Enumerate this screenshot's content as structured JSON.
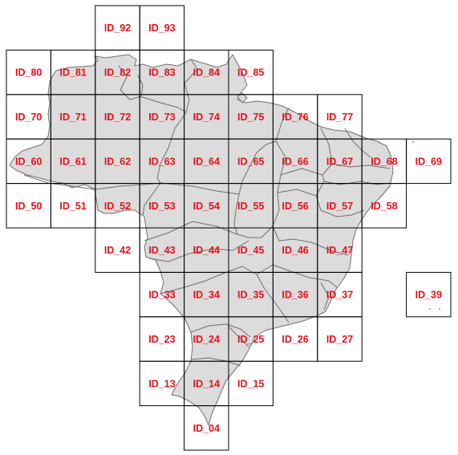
{
  "map": {
    "tiles": [
      {
        "id": "ID_92",
        "row": 0,
        "col": 2
      },
      {
        "id": "ID_93",
        "row": 0,
        "col": 3
      },
      {
        "id": "ID_80",
        "row": 1,
        "col": 0
      },
      {
        "id": "ID_81",
        "row": 1,
        "col": 1
      },
      {
        "id": "ID_82",
        "row": 1,
        "col": 2
      },
      {
        "id": "ID_83",
        "row": 1,
        "col": 3
      },
      {
        "id": "ID_84",
        "row": 1,
        "col": 4
      },
      {
        "id": "ID_85",
        "row": 1,
        "col": 5
      },
      {
        "id": "ID_70",
        "row": 2,
        "col": 0
      },
      {
        "id": "ID_71",
        "row": 2,
        "col": 1
      },
      {
        "id": "ID_72",
        "row": 2,
        "col": 2
      },
      {
        "id": "ID_73",
        "row": 2,
        "col": 3
      },
      {
        "id": "ID_74",
        "row": 2,
        "col": 4
      },
      {
        "id": "ID_75",
        "row": 2,
        "col": 5
      },
      {
        "id": "ID_76",
        "row": 2,
        "col": 6
      },
      {
        "id": "ID_77",
        "row": 2,
        "col": 7
      },
      {
        "id": "ID_60",
        "row": 3,
        "col": 0
      },
      {
        "id": "ID_61",
        "row": 3,
        "col": 1
      },
      {
        "id": "ID_62",
        "row": 3,
        "col": 2
      },
      {
        "id": "ID_63",
        "row": 3,
        "col": 3
      },
      {
        "id": "ID_64",
        "row": 3,
        "col": 4
      },
      {
        "id": "ID_65",
        "row": 3,
        "col": 5
      },
      {
        "id": "ID_66",
        "row": 3,
        "col": 6
      },
      {
        "id": "ID_67",
        "row": 3,
        "col": 7
      },
      {
        "id": "ID_68",
        "row": 3,
        "col": 8
      },
      {
        "id": "ID_69",
        "row": 3,
        "col": 9
      },
      {
        "id": "ID_50",
        "row": 4,
        "col": 0
      },
      {
        "id": "ID_51",
        "row": 4,
        "col": 1
      },
      {
        "id": "ID_52",
        "row": 4,
        "col": 2
      },
      {
        "id": "ID_53",
        "row": 4,
        "col": 3
      },
      {
        "id": "ID_54",
        "row": 4,
        "col": 4
      },
      {
        "id": "ID_55",
        "row": 4,
        "col": 5
      },
      {
        "id": "ID_56",
        "row": 4,
        "col": 6
      },
      {
        "id": "ID_57",
        "row": 4,
        "col": 7
      },
      {
        "id": "ID_58",
        "row": 4,
        "col": 8
      },
      {
        "id": "ID_42",
        "row": 5,
        "col": 2
      },
      {
        "id": "ID_43",
        "row": 5,
        "col": 3
      },
      {
        "id": "ID_44",
        "row": 5,
        "col": 4
      },
      {
        "id": "ID_45",
        "row": 5,
        "col": 5
      },
      {
        "id": "ID_46",
        "row": 5,
        "col": 6
      },
      {
        "id": "ID_47",
        "row": 5,
        "col": 7
      },
      {
        "id": "ID_33",
        "row": 6,
        "col": 3
      },
      {
        "id": "ID_34",
        "row": 6,
        "col": 4
      },
      {
        "id": "ID_35",
        "row": 6,
        "col": 5
      },
      {
        "id": "ID_36",
        "row": 6,
        "col": 6
      },
      {
        "id": "ID_37",
        "row": 6,
        "col": 7
      },
      {
        "id": "ID_39",
        "row": 6,
        "col": 9
      },
      {
        "id": "ID_23",
        "row": 7,
        "col": 3
      },
      {
        "id": "ID_24",
        "row": 7,
        "col": 4
      },
      {
        "id": "ID_25",
        "row": 7,
        "col": 5
      },
      {
        "id": "ID_26",
        "row": 7,
        "col": 6
      },
      {
        "id": "ID_27",
        "row": 7,
        "col": 7
      },
      {
        "id": "ID_13",
        "row": 8,
        "col": 3
      },
      {
        "id": "ID_14",
        "row": 8,
        "col": 4
      },
      {
        "id": "ID_15",
        "row": 8,
        "col": 5
      },
      {
        "id": "ID_04",
        "row": 9,
        "col": 4
      }
    ],
    "land_color": "#dcdcdc",
    "border_color": "#6f6f6f",
    "label_color": "#e8101c",
    "grid_color": "#000000"
  }
}
